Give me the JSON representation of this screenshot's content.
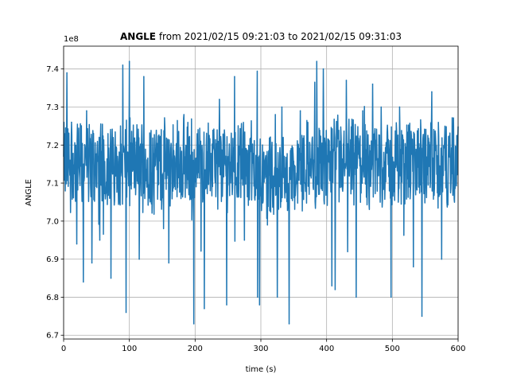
{
  "chart_data": {
    "type": "line",
    "title_bold": "ANGLE",
    "title_rest": " from 2021/02/15 09:21:03 to 2021/02/15 09:31:03",
    "offset_label": "1e8",
    "xlabel": "time (s)",
    "ylabel": "ANGLE",
    "xlim": [
      0,
      600
    ],
    "ylim": [
      6.69,
      7.46
    ],
    "xticks": [
      0,
      100,
      200,
      300,
      400,
      500,
      600
    ],
    "xtick_labels": [
      "0",
      "100",
      "200",
      "300",
      "400",
      "500",
      "600"
    ],
    "yticks": [
      6.7,
      6.8,
      6.9,
      7.0,
      7.1,
      7.2,
      7.3,
      7.4
    ],
    "ytick_labels": [
      "6.7",
      "6.8",
      "6.9",
      "7.0",
      "7.1",
      "7.2",
      "7.3",
      "7.4"
    ],
    "grid": true,
    "series": [
      {
        "color": "#1f77b4",
        "baseline": 7.15,
        "spikes": [
          {
            "x": 5,
            "y": 7.39
          },
          {
            "x": 12,
            "y": 7.26
          },
          {
            "x": 20,
            "y": 6.94
          },
          {
            "x": 30,
            "y": 6.84
          },
          {
            "x": 35,
            "y": 7.29
          },
          {
            "x": 43,
            "y": 6.89
          },
          {
            "x": 55,
            "y": 6.95
          },
          {
            "x": 72,
            "y": 6.85
          },
          {
            "x": 90,
            "y": 7.41
          },
          {
            "x": 95,
            "y": 6.76
          },
          {
            "x": 100,
            "y": 7.42
          },
          {
            "x": 115,
            "y": 6.9
          },
          {
            "x": 122,
            "y": 7.38
          },
          {
            "x": 160,
            "y": 6.89
          },
          {
            "x": 183,
            "y": 7.28
          },
          {
            "x": 198,
            "y": 6.73
          },
          {
            "x": 214,
            "y": 6.77
          },
          {
            "x": 237,
            "y": 7.32
          },
          {
            "x": 248,
            "y": 6.78
          },
          {
            "x": 260,
            "y": 7.38
          },
          {
            "x": 275,
            "y": 6.95
          },
          {
            "x": 295,
            "y": 6.8
          },
          {
            "x": 298,
            "y": 6.78
          },
          {
            "x": 310,
            "y": 6.99
          },
          {
            "x": 322,
            "y": 7.28
          },
          {
            "x": 325,
            "y": 6.8
          },
          {
            "x": 332,
            "y": 7.3
          },
          {
            "x": 343,
            "y": 6.73
          },
          {
            "x": 360,
            "y": 7.29
          },
          {
            "x": 385,
            "y": 7.42
          },
          {
            "x": 395,
            "y": 7.4
          },
          {
            "x": 408,
            "y": 6.83
          },
          {
            "x": 413,
            "y": 6.82
          },
          {
            "x": 430,
            "y": 7.37
          },
          {
            "x": 432,
            "y": 6.92
          },
          {
            "x": 445,
            "y": 6.8
          },
          {
            "x": 455,
            "y": 7.29
          },
          {
            "x": 470,
            "y": 7.36
          },
          {
            "x": 483,
            "y": 7.3
          },
          {
            "x": 498,
            "y": 6.8
          },
          {
            "x": 511,
            "y": 7.3
          },
          {
            "x": 532,
            "y": 6.88
          },
          {
            "x": 545,
            "y": 6.75
          },
          {
            "x": 560,
            "y": 7.34
          },
          {
            "x": 575,
            "y": 6.9
          }
        ]
      }
    ]
  }
}
